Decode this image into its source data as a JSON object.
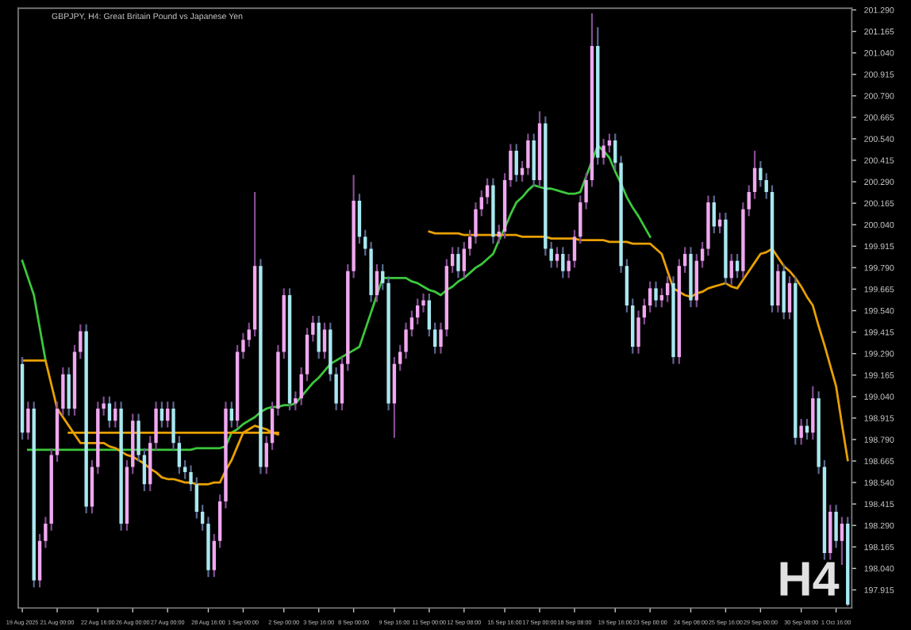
{
  "chart_data": {
    "type": "candlestick",
    "title": "GBPJPY, H4: Great Britain Pound vs Japanese Yen",
    "annotations": [
      "H4"
    ],
    "categories": [
      "19 Aug 2025",
      null,
      null,
      null,
      null,
      null,
      "21 Aug 00:00",
      null,
      null,
      null,
      null,
      null,
      null,
      "22 Aug 16:00",
      null,
      null,
      null,
      null,
      null,
      "26 Aug 00:00",
      null,
      null,
      null,
      null,
      null,
      "27 Aug 00:00",
      null,
      null,
      null,
      null,
      null,
      null,
      "28 Aug 16:00",
      null,
      null,
      null,
      null,
      null,
      "1 Sep 00:00",
      null,
      null,
      null,
      null,
      null,
      null,
      "2 Sep 00:00",
      null,
      null,
      null,
      null,
      null,
      "3 Sep 16:00",
      null,
      null,
      null,
      null,
      null,
      "8 Sep 00:00",
      null,
      null,
      null,
      null,
      null,
      null,
      "9 Sep 16:00",
      null,
      null,
      null,
      null,
      null,
      "11 Sep 00:00",
      null,
      null,
      null,
      null,
      null,
      "12 Sep 08:00",
      null,
      null,
      null,
      null,
      null,
      null,
      "15 Sep 16:00",
      null,
      null,
      null,
      null,
      null,
      "17 Sep 00:00",
      null,
      null,
      null,
      null,
      null,
      "18 Sep 08:00",
      null,
      null,
      null,
      null,
      null,
      null,
      "19 Sep 16:00",
      null,
      null,
      null,
      null,
      null,
      "23 Sep 00:00",
      null,
      null,
      null,
      null,
      null,
      null,
      "24 Sep 08:00",
      null,
      null,
      null,
      null,
      null,
      "25 Sep 16:00",
      null,
      null,
      null,
      null,
      null,
      "29 Sep 00:00",
      null,
      null,
      null,
      null,
      null,
      null,
      "30 Sep 08:00",
      null,
      null,
      null,
      null,
      null,
      "1 Oct 16:00",
      null,
      null
    ],
    "ohlc": [
      [
        199.23,
        199.27,
        198.79,
        198.83
      ],
      [
        198.83,
        199.01,
        198.79,
        198.97
      ],
      [
        198.97,
        199.01,
        197.93,
        197.97
      ],
      [
        197.97,
        198.24,
        197.93,
        198.2
      ],
      [
        198.2,
        198.34,
        198.16,
        198.3
      ],
      [
        198.3,
        198.74,
        198.26,
        198.7
      ],
      [
        198.7,
        199.01,
        198.66,
        198.97
      ],
      [
        198.97,
        199.21,
        198.93,
        199.17
      ],
      [
        199.17,
        199.21,
        198.93,
        198.97
      ],
      [
        198.97,
        199.34,
        198.93,
        199.3
      ],
      [
        199.3,
        199.46,
        199.26,
        199.42
      ],
      [
        199.42,
        199.46,
        198.36,
        198.4
      ],
      [
        198.4,
        198.67,
        198.36,
        198.63
      ],
      [
        198.63,
        199.01,
        198.59,
        198.97
      ],
      [
        198.97,
        199.04,
        198.93,
        199.0
      ],
      [
        199.0,
        199.04,
        198.86,
        198.9
      ],
      [
        198.9,
        199.01,
        198.86,
        198.97
      ],
      [
        198.97,
        199.01,
        198.26,
        198.3
      ],
      [
        198.3,
        198.67,
        198.26,
        198.63
      ],
      [
        198.63,
        198.94,
        198.59,
        198.9
      ],
      [
        198.9,
        198.94,
        198.66,
        198.7
      ],
      [
        198.7,
        198.74,
        198.49,
        198.53
      ],
      [
        198.53,
        198.81,
        198.49,
        198.77
      ],
      [
        198.77,
        199.01,
        198.73,
        198.97
      ],
      [
        198.97,
        199.01,
        198.86,
        198.9
      ],
      [
        198.9,
        199.01,
        198.86,
        198.97
      ],
      [
        198.97,
        199.01,
        198.73,
        198.77
      ],
      [
        198.77,
        198.81,
        198.59,
        198.63
      ],
      [
        198.63,
        198.67,
        198.56,
        198.6
      ],
      [
        198.6,
        198.64,
        198.49,
        198.53
      ],
      [
        198.53,
        198.57,
        198.33,
        198.37
      ],
      [
        198.37,
        198.41,
        198.26,
        198.3
      ],
      [
        198.3,
        198.34,
        197.99,
        198.03
      ],
      [
        198.03,
        198.24,
        197.99,
        198.2
      ],
      [
        198.2,
        198.47,
        198.16,
        198.43
      ],
      [
        198.43,
        199.01,
        198.39,
        198.97
      ],
      [
        198.97,
        199.01,
        198.86,
        198.9
      ],
      [
        198.9,
        199.34,
        198.86,
        199.3
      ],
      [
        199.3,
        199.41,
        199.26,
        199.37
      ],
      [
        199.37,
        199.47,
        199.33,
        199.43
      ],
      [
        199.43,
        200.23,
        199.39,
        199.8
      ],
      [
        199.8,
        199.84,
        198.59,
        198.63
      ],
      [
        198.63,
        198.81,
        198.59,
        198.77
      ],
      [
        198.77,
        199.01,
        198.73,
        198.97
      ],
      [
        198.97,
        199.34,
        198.93,
        199.3
      ],
      [
        199.3,
        199.67,
        199.26,
        199.63
      ],
      [
        199.63,
        199.67,
        198.96,
        199.0
      ],
      [
        199.0,
        199.07,
        198.96,
        199.03
      ],
      [
        199.03,
        199.21,
        198.99,
        199.17
      ],
      [
        199.17,
        199.44,
        199.13,
        199.4
      ],
      [
        199.4,
        199.51,
        199.36,
        199.47
      ],
      [
        199.47,
        199.51,
        199.26,
        199.3
      ],
      [
        199.3,
        199.47,
        199.26,
        199.43
      ],
      [
        199.43,
        199.47,
        199.13,
        199.17
      ],
      [
        199.17,
        199.21,
        198.96,
        199.0
      ],
      [
        199.0,
        199.27,
        198.96,
        199.23
      ],
      [
        199.23,
        199.81,
        199.19,
        199.77
      ],
      [
        199.77,
        200.33,
        199.73,
        200.18
      ],
      [
        200.18,
        200.22,
        199.93,
        199.97
      ],
      [
        199.97,
        200.01,
        199.86,
        199.9
      ],
      [
        199.9,
        199.94,
        199.59,
        199.63
      ],
      [
        199.63,
        199.81,
        199.59,
        199.77
      ],
      [
        199.77,
        199.81,
        199.66,
        199.7
      ],
      [
        199.7,
        199.74,
        198.96,
        199.0
      ],
      [
        199.0,
        199.27,
        198.8,
        199.23
      ],
      [
        199.23,
        199.34,
        199.19,
        199.3
      ],
      [
        199.3,
        199.47,
        199.26,
        199.43
      ],
      [
        199.43,
        199.54,
        199.39,
        199.5
      ],
      [
        199.5,
        199.61,
        199.46,
        199.57
      ],
      [
        199.57,
        199.64,
        199.53,
        199.6
      ],
      [
        199.6,
        199.64,
        199.39,
        199.43
      ],
      [
        199.43,
        199.47,
        199.29,
        199.33
      ],
      [
        199.33,
        199.47,
        199.29,
        199.43
      ],
      [
        199.43,
        199.84,
        199.39,
        199.8
      ],
      [
        199.8,
        199.91,
        199.76,
        199.87
      ],
      [
        199.87,
        199.91,
        199.73,
        199.77
      ],
      [
        199.77,
        199.94,
        199.73,
        199.9
      ],
      [
        199.9,
        200.01,
        199.86,
        199.97
      ],
      [
        199.97,
        200.17,
        199.93,
        200.13
      ],
      [
        200.13,
        200.24,
        200.09,
        200.2
      ],
      [
        200.2,
        200.31,
        200.16,
        200.27
      ],
      [
        200.27,
        200.31,
        199.93,
        199.97
      ],
      [
        199.97,
        200.04,
        199.93,
        200.0
      ],
      [
        200.0,
        200.34,
        199.96,
        200.3
      ],
      [
        200.3,
        200.51,
        200.26,
        200.47
      ],
      [
        200.47,
        200.51,
        200.29,
        200.33
      ],
      [
        200.33,
        200.41,
        200.29,
        200.37
      ],
      [
        200.37,
        200.57,
        200.33,
        200.53
      ],
      [
        200.53,
        200.57,
        200.26,
        200.3
      ],
      [
        200.3,
        200.7,
        200.26,
        200.63
      ],
      [
        200.63,
        200.67,
        199.86,
        199.9
      ],
      [
        199.9,
        199.94,
        199.79,
        199.83
      ],
      [
        199.83,
        199.91,
        199.79,
        199.87
      ],
      [
        199.87,
        199.91,
        199.73,
        199.77
      ],
      [
        199.77,
        199.87,
        199.73,
        199.83
      ],
      [
        199.83,
        200.01,
        199.79,
        199.97
      ],
      [
        199.97,
        200.21,
        199.93,
        200.17
      ],
      [
        200.17,
        200.34,
        200.13,
        200.3
      ],
      [
        200.3,
        201.27,
        200.26,
        201.08
      ],
      [
        201.08,
        201.19,
        200.39,
        200.43
      ],
      [
        200.43,
        200.54,
        200.39,
        200.5
      ],
      [
        200.5,
        200.57,
        200.46,
        200.53
      ],
      [
        200.53,
        200.57,
        200.36,
        200.4
      ],
      [
        200.4,
        200.44,
        199.76,
        199.8
      ],
      [
        199.8,
        199.84,
        199.53,
        199.57
      ],
      [
        199.57,
        199.61,
        199.29,
        199.33
      ],
      [
        199.33,
        199.54,
        199.29,
        199.5
      ],
      [
        199.5,
        199.61,
        199.46,
        199.57
      ],
      [
        199.57,
        199.71,
        199.53,
        199.67
      ],
      [
        199.67,
        199.71,
        199.56,
        199.6
      ],
      [
        199.6,
        199.67,
        199.56,
        199.63
      ],
      [
        199.63,
        199.74,
        199.59,
        199.7
      ],
      [
        199.7,
        199.74,
        199.23,
        199.27
      ],
      [
        199.27,
        199.84,
        199.23,
        199.8
      ],
      [
        199.8,
        199.91,
        199.76,
        199.87
      ],
      [
        199.87,
        199.91,
        199.56,
        199.6
      ],
      [
        199.6,
        199.87,
        199.56,
        199.83
      ],
      [
        199.83,
        199.94,
        199.79,
        199.9
      ],
      [
        199.9,
        200.21,
        199.86,
        200.17
      ],
      [
        200.17,
        200.21,
        199.99,
        200.03
      ],
      [
        200.03,
        200.11,
        199.99,
        200.07
      ],
      [
        200.07,
        200.11,
        199.69,
        199.73
      ],
      [
        199.73,
        199.87,
        199.69,
        199.83
      ],
      [
        199.83,
        199.87,
        199.73,
        199.77
      ],
      [
        199.77,
        200.17,
        199.73,
        200.13
      ],
      [
        200.13,
        200.27,
        200.09,
        200.23
      ],
      [
        200.23,
        200.47,
        200.19,
        200.37
      ],
      [
        200.37,
        200.41,
        200.26,
        200.3
      ],
      [
        200.3,
        200.34,
        200.19,
        200.23
      ],
      [
        200.23,
        200.27,
        199.53,
        199.57
      ],
      [
        199.57,
        199.81,
        199.53,
        199.77
      ],
      [
        199.77,
        199.81,
        199.49,
        199.53
      ],
      [
        199.53,
        199.74,
        199.49,
        199.7
      ],
      [
        199.7,
        199.74,
        198.76,
        198.8
      ],
      [
        198.8,
        198.91,
        198.76,
        198.87
      ],
      [
        198.87,
        198.91,
        198.79,
        198.83
      ],
      [
        198.83,
        199.1,
        198.79,
        199.03
      ],
      [
        199.03,
        199.07,
        198.59,
        198.63
      ],
      [
        198.63,
        198.67,
        198.09,
        198.13
      ],
      [
        198.13,
        198.41,
        198.09,
        198.37
      ],
      [
        198.37,
        198.41,
        198.16,
        198.2
      ],
      [
        198.2,
        198.34,
        198.06,
        198.3
      ],
      [
        198.3,
        198.34,
        197.82,
        197.83
      ]
    ],
    "colors": [
      "#a8e8f0",
      "#f0a8f0",
      "#a8e8f0",
      "#f0a8f0",
      "#f0a8f0",
      "#f0a8f0",
      "#f0a8f0",
      "#f0a8f0",
      "#a8e8f0",
      "#f0a8f0",
      "#f0a8f0",
      "#a8e8f0",
      "#f0a8f0",
      "#f0a8f0",
      "#f0a8f0",
      "#a8e8f0",
      "#f0a8f0",
      "#a8e8f0",
      "#f0a8f0",
      "#f0a8f0",
      "#a8e8f0",
      "#a8e8f0",
      "#f0a8f0",
      "#f0a8f0",
      "#a8e8f0",
      "#f0a8f0",
      "#a8e8f0",
      "#a8e8f0",
      "#a8e8f0",
      "#a8e8f0",
      "#a8e8f0",
      "#a8e8f0",
      "#a8e8f0",
      "#f0a8f0",
      "#f0a8f0",
      "#f0a8f0",
      "#a8e8f0",
      "#f0a8f0",
      "#f0a8f0",
      "#f0a8f0",
      "#f0a8f0",
      "#a8e8f0",
      "#f0a8f0",
      "#f0a8f0",
      "#f0a8f0",
      "#f0a8f0",
      "#a8e8f0",
      "#f0a8f0",
      "#f0a8f0",
      "#f0a8f0",
      "#f0a8f0",
      "#a8e8f0",
      "#f0a8f0",
      "#a8e8f0",
      "#a8e8f0",
      "#f0a8f0",
      "#f0a8f0",
      "#f0a8f0",
      "#a8e8f0",
      "#a8e8f0",
      "#a8e8f0",
      "#f0a8f0",
      "#a8e8f0",
      "#a8e8f0",
      "#f0a8f0",
      "#f0a8f0",
      "#f0a8f0",
      "#f0a8f0",
      "#f0a8f0",
      "#f0a8f0",
      "#a8e8f0",
      "#a8e8f0",
      "#f0a8f0",
      "#f0a8f0",
      "#f0a8f0",
      "#a8e8f0",
      "#f0a8f0",
      "#f0a8f0",
      "#f0a8f0",
      "#f0a8f0",
      "#f0a8f0",
      "#a8e8f0",
      "#f0a8f0",
      "#f0a8f0",
      "#f0a8f0",
      "#a8e8f0",
      "#f0a8f0",
      "#f0a8f0",
      "#a8e8f0",
      "#f0a8f0",
      "#a8e8f0",
      "#a8e8f0",
      "#f0a8f0",
      "#a8e8f0",
      "#f0a8f0",
      "#f0a8f0",
      "#f0a8f0",
      "#f0a8f0",
      "#f0a8f0",
      "#a8e8f0",
      "#f0a8f0",
      "#f0a8f0",
      "#a8e8f0",
      "#a8e8f0",
      "#a8e8f0",
      "#a8e8f0",
      "#f0a8f0",
      "#f0a8f0",
      "#f0a8f0",
      "#a8e8f0",
      "#f0a8f0",
      "#f0a8f0",
      "#a8e8f0",
      "#f0a8f0",
      "#f0a8f0",
      "#a8e8f0",
      "#f0a8f0",
      "#f0a8f0",
      "#f0a8f0",
      "#a8e8f0",
      "#f0a8f0",
      "#a8e8f0",
      "#f0a8f0",
      "#a8e8f0",
      "#f0a8f0",
      "#f0a8f0",
      "#f0a8f0",
      "#a8e8f0",
      "#a8e8f0",
      "#a8e8f0",
      "#f0a8f0",
      "#a8e8f0",
      "#f0a8f0",
      "#a8e8f0",
      "#f0a8f0",
      "#a8e8f0",
      "#f0a8f0",
      "#a8e8f0",
      "#a8e8f0",
      "#f0a8f0",
      "#a8e8f0",
      "#f0a8f0",
      "#a8e8f0"
    ],
    "series": [
      {
        "type": "line",
        "color": "#3cc83c",
        "values": [
          199.83,
          199.73,
          199.63,
          199.44,
          199.25,
          null,
          null,
          null,
          null,
          null,
          null,
          null,
          null,
          null,
          null,
          null,
          null,
          null,
          null,
          null,
          null,
          null,
          null,
          null,
          null,
          null,
          null,
          null,
          null,
          null,
          null,
          null,
          null,
          null,
          null,
          null,
          null,
          null,
          null,
          null,
          null,
          null,
          null,
          null,
          null,
          null,
          null,
          null,
          null,
          null,
          null,
          null,
          null,
          null,
          null,
          null,
          null,
          null,
          null,
          null,
          null,
          null,
          null,
          null,
          null,
          null,
          null,
          null,
          null,
          null,
          null,
          null,
          null,
          null,
          null,
          null,
          null,
          null,
          null,
          null,
          null,
          null,
          null,
          null,
          null,
          null,
          null,
          null,
          null,
          null,
          null,
          null,
          null,
          null,
          null,
          null,
          null,
          null,
          null,
          null,
          null,
          null,
          null,
          null,
          null,
          null,
          null,
          null,
          null,
          null,
          null,
          null,
          null,
          null,
          null,
          null,
          null,
          null,
          null,
          null,
          null,
          null,
          null,
          null,
          null,
          null,
          null,
          null,
          null,
          null,
          null,
          null,
          null,
          null,
          null,
          null,
          null,
          null,
          null,
          null,
          null,
          null,
          null
        ]
      },
      {
        "type": "line",
        "color": "#3cc83c",
        "values": [
          null,
          198.73,
          198.73,
          198.73,
          198.73,
          198.73,
          198.73,
          198.73,
          198.73,
          198.73,
          198.73,
          198.73,
          198.73,
          198.73,
          198.73,
          198.73,
          198.73,
          198.73,
          198.73,
          198.73,
          198.73,
          198.73,
          198.73,
          198.73,
          198.73,
          198.73,
          198.73,
          198.73,
          198.73,
          198.73,
          198.74,
          198.74,
          198.74,
          198.74,
          198.74,
          198.75,
          198.83,
          198.85,
          198.88,
          198.9,
          198.92,
          198.95,
          198.97,
          198.98,
          198.98,
          198.99,
          198.99,
          199.0,
          199.04,
          199.08,
          199.12,
          199.15,
          199.19,
          199.23,
          199.25,
          199.27,
          199.29,
          199.31,
          199.33,
          199.43,
          199.53,
          199.63,
          199.73,
          199.73,
          199.73,
          199.73,
          199.73,
          199.71,
          199.7,
          199.68,
          199.66,
          199.65,
          199.63,
          199.66,
          199.68,
          199.71,
          199.73,
          199.76,
          199.79,
          199.81,
          199.84,
          199.87,
          199.95,
          200.02,
          200.1,
          200.17,
          200.2,
          200.24,
          200.27,
          200.26,
          200.25,
          200.25,
          200.24,
          200.23,
          200.22,
          200.22,
          200.23,
          200.32,
          200.41,
          200.5,
          200.47,
          200.43,
          200.35,
          200.28,
          200.2,
          200.14,
          200.09,
          200.03,
          199.97,
          null,
          null,
          null,
          null,
          null,
          null,
          null,
          null,
          null,
          null,
          null,
          null,
          null,
          null,
          null,
          null,
          null,
          null,
          null,
          null,
          null,
          null,
          null,
          null,
          null,
          null,
          null,
          null,
          null,
          null,
          null,
          null,
          null,
          null
        ]
      },
      {
        "type": "line",
        "color": "#e8a000",
        "values": [
          199.25,
          199.25,
          199.25,
          199.25,
          199.25,
          199.11,
          198.97,
          198.92,
          198.87,
          198.82,
          198.77,
          198.77,
          198.77,
          198.77,
          198.77,
          198.75,
          198.74,
          198.72,
          198.7,
          198.69,
          198.67,
          198.65,
          198.62,
          198.6,
          198.57,
          198.56,
          198.56,
          198.55,
          198.54,
          198.54,
          198.53,
          198.53,
          198.53,
          198.54,
          198.54,
          198.61,
          198.67,
          198.75,
          198.83,
          198.85,
          198.87,
          198.86,
          198.85,
          198.83,
          198.82,
          null,
          null,
          null,
          null,
          null,
          null,
          null,
          null,
          null,
          null,
          null,
          null,
          null,
          null,
          null,
          null,
          null,
          null,
          null,
          null,
          null,
          null,
          null,
          null,
          null,
          null,
          null,
          null,
          null,
          null,
          null,
          null,
          null,
          null,
          null,
          null,
          null,
          null,
          null,
          null,
          null,
          null,
          null,
          null,
          null,
          null,
          null,
          null,
          null,
          null,
          null,
          null,
          null,
          null,
          null,
          null,
          null,
          null,
          null,
          null,
          null,
          null,
          null,
          null,
          null,
          null,
          null,
          null,
          null,
          null,
          null,
          null,
          null,
          null,
          null,
          null,
          null,
          null,
          null,
          null,
          null,
          null,
          null,
          null,
          null,
          null,
          null,
          null,
          null,
          null,
          null,
          null,
          null,
          null,
          null,
          null,
          null,
          null
        ]
      },
      {
        "type": "line",
        "color": "#e8a000",
        "values": [
          null,
          null,
          null,
          null,
          null,
          null,
          null,
          null,
          198.83,
          198.83,
          198.83,
          198.83,
          198.83,
          198.83,
          198.83,
          198.83,
          198.83,
          198.83,
          198.83,
          198.83,
          198.83,
          198.83,
          198.83,
          198.83,
          198.83,
          198.83,
          198.83,
          198.83,
          198.83,
          198.83,
          198.83,
          198.83,
          198.83,
          198.83,
          198.83,
          198.83,
          198.83,
          198.83,
          198.83,
          198.83,
          198.83,
          198.83,
          198.83,
          198.83,
          198.83,
          null,
          null,
          null,
          null,
          null,
          null,
          null,
          null,
          null,
          null,
          null,
          null,
          null,
          null,
          null,
          null,
          null,
          null,
          null,
          null,
          null,
          null,
          null,
          null,
          null,
          null,
          null,
          null,
          null,
          null,
          null,
          null,
          null,
          null,
          null,
          null,
          null,
          null,
          null,
          null,
          null,
          null,
          null,
          null,
          null,
          null,
          null,
          null,
          null,
          null,
          null,
          null,
          null,
          null,
          null,
          null,
          null,
          null,
          null,
          null,
          null,
          null,
          null,
          null,
          null,
          null,
          null,
          null,
          null,
          null,
          null,
          null,
          null,
          null,
          null,
          null,
          null,
          null,
          null,
          null,
          null,
          null,
          null,
          null,
          null,
          null,
          null,
          null,
          null,
          null,
          null,
          null,
          null,
          null,
          null,
          null,
          null,
          null
        ]
      },
      {
        "type": "line",
        "color": "#e8a000",
        "values": [
          null,
          null,
          null,
          null,
          null,
          null,
          null,
          null,
          null,
          null,
          null,
          null,
          null,
          null,
          null,
          null,
          null,
          null,
          null,
          null,
          null,
          null,
          null,
          null,
          null,
          null,
          null,
          null,
          null,
          null,
          null,
          null,
          null,
          null,
          null,
          null,
          null,
          null,
          null,
          null,
          null,
          null,
          null,
          null,
          null,
          null,
          null,
          null,
          null,
          null,
          null,
          null,
          null,
          null,
          null,
          null,
          null,
          null,
          null,
          null,
          null,
          null,
          null,
          null,
          null,
          null,
          null,
          null,
          null,
          null,
          200.0,
          199.99,
          199.99,
          199.99,
          199.99,
          199.99,
          199.98,
          199.98,
          199.98,
          199.98,
          199.98,
          199.98,
          199.98,
          199.98,
          199.98,
          199.98,
          199.97,
          199.97,
          199.97,
          199.97,
          199.97,
          199.96,
          199.96,
          199.96,
          199.96,
          199.96,
          199.95,
          199.95,
          199.95,
          199.95,
          199.95,
          199.94,
          199.94,
          199.94,
          199.94,
          199.93,
          199.93,
          199.93,
          199.93,
          199.9,
          199.87,
          199.77,
          199.67,
          199.65,
          199.63,
          199.62,
          199.64,
          199.65,
          199.67,
          199.68,
          199.69,
          199.7,
          199.68,
          199.67,
          199.72,
          199.77,
          199.82,
          199.87,
          199.88,
          199.9,
          199.85,
          199.8,
          199.77,
          199.73,
          199.68,
          199.62,
          199.57,
          199.45,
          199.34,
          199.22,
          199.1,
          198.88,
          198.67
        ]
      }
    ],
    "ylim": [
      197.81,
      201.3
    ],
    "yticks": [
      197.915,
      {
        "value": 198.04,
        "label": "198.040"
      },
      198.165,
      {
        "value": 198.29,
        "label": "198.290"
      },
      198.415,
      {
        "value": 198.54,
        "label": "198.540"
      },
      198.665,
      {
        "value": 198.79,
        "label": "198.790"
      },
      198.915,
      {
        "value": 199.04,
        "label": "199.040"
      },
      199.165,
      {
        "value": 199.29,
        "label": "199.290"
      },
      199.415,
      {
        "value": 199.54,
        "label": "199.540"
      },
      199.665,
      {
        "value": 199.79,
        "label": "199.790"
      },
      199.915,
      {
        "value": 200.04,
        "label": "200.040"
      },
      200.165,
      {
        "value": 200.29,
        "label": "200.290"
      },
      200.415,
      {
        "value": 200.54,
        "label": "200.540"
      },
      200.665,
      {
        "value": 200.79,
        "label": "200.790"
      },
      200.915,
      {
        "value": 201.04,
        "label": "201.040"
      },
      201.165,
      {
        "value": 201.29,
        "label": "201.290"
      }
    ],
    "grid": false,
    "legend": false
  }
}
